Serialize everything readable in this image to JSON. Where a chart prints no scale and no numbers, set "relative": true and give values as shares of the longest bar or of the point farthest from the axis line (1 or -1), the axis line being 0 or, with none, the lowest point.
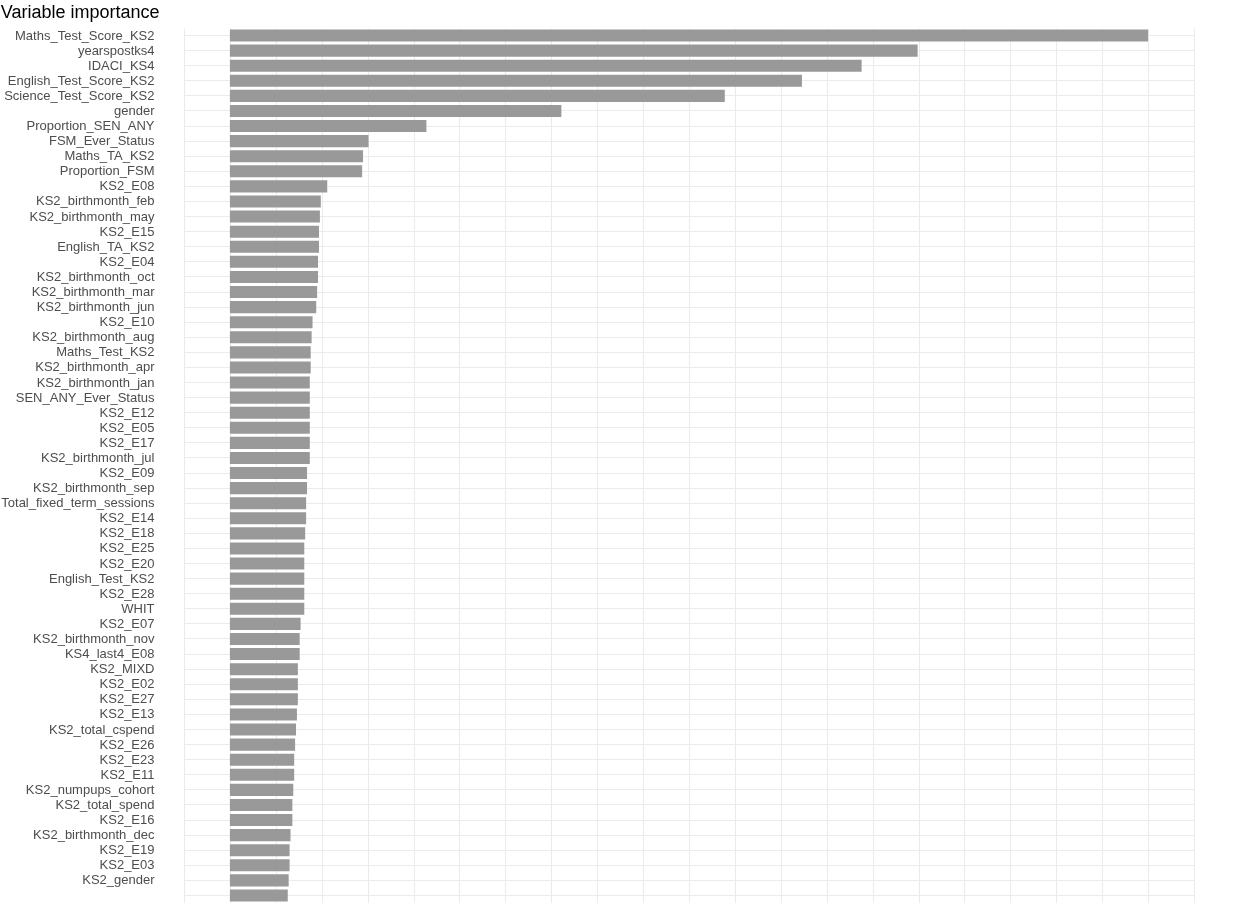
{
  "chart_data": {
    "type": "bar",
    "title": "Variable importance",
    "orientation": "horizontal",
    "relative": true,
    "grid": true,
    "color": "#999999",
    "categories": [
      "Maths_Test_Score_KS2",
      "yearspostks4",
      "IDACI_KS4",
      "English_Test_Score_KS2",
      "Science_Test_Score_KS2",
      "gender",
      "Proportion_SEN_ANY",
      "FSM_Ever_Status",
      "Maths_TA_KS2",
      "Proportion_FSM",
      "KS2_E08",
      "KS2_birthmonth_feb",
      "KS2_birthmonth_may",
      "KS2_E15",
      "English_TA_KS2",
      "KS2_E04",
      "KS2_birthmonth_oct",
      "KS2_birthmonth_mar",
      "KS2_birthmonth_jun",
      "KS2_E10",
      "KS2_birthmonth_aug",
      "Maths_Test_KS2",
      "KS2_birthmonth_apr",
      "KS2_birthmonth_jan",
      "SEN_ANY_Ever_Status",
      "KS2_E12",
      "KS2_E05",
      "KS2_E17",
      "KS2_birthmonth_jul",
      "KS2_E09",
      "KS2_birthmonth_sep",
      "Total_fixed_term_sessions",
      "KS2_E14",
      "KS2_E18",
      "KS2_E25",
      "KS2_E20",
      "English_Test_KS2",
      "KS2_E28",
      "WHIT",
      "KS2_E07",
      "KS2_birthmonth_nov",
      "KS4_last4_E08",
      "KS2_MIXD",
      "KS2_E02",
      "KS2_E27",
      "KS2_E13",
      "KS2_total_cspend",
      "KS2_E26",
      "KS2_E23",
      "KS2_E11",
      "KS2_numpups_cohort",
      "KS2_total_spend",
      "KS2_E16",
      "KS2_birthmonth_dec",
      "KS2_E19",
      "KS2_E03",
      "KS2_gender",
      null
    ],
    "values": [
      1.0,
      0.749,
      0.688,
      0.623,
      0.539,
      0.361,
      0.214,
      0.151,
      0.145,
      0.144,
      0.106,
      0.099,
      0.098,
      0.097,
      0.097,
      0.096,
      0.096,
      0.095,
      0.094,
      0.09,
      0.089,
      0.088,
      0.088,
      0.087,
      0.087,
      0.087,
      0.087,
      0.087,
      0.087,
      0.084,
      0.084,
      0.083,
      0.083,
      0.082,
      0.081,
      0.081,
      0.081,
      0.081,
      0.081,
      0.077,
      0.076,
      0.076,
      0.074,
      0.074,
      0.074,
      0.073,
      0.072,
      0.071,
      0.07,
      0.07,
      0.069,
      0.068,
      0.068,
      0.066,
      0.065,
      0.065,
      0.064,
      0.063
    ]
  }
}
